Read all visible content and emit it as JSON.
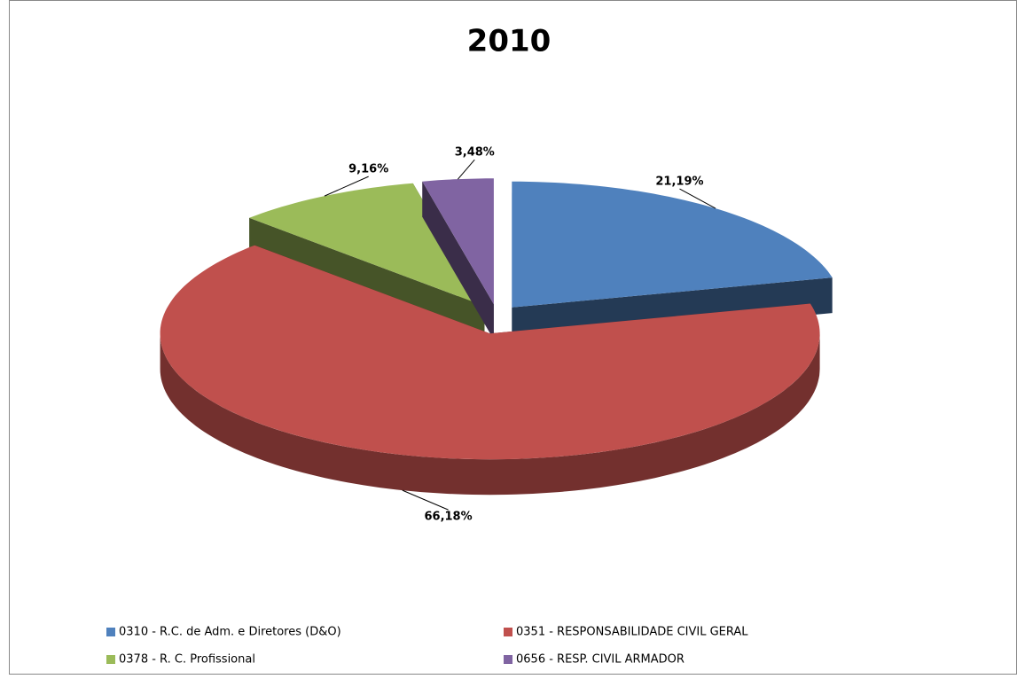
{
  "chart_data": {
    "type": "pie",
    "title": "2010",
    "categories": [
      "0310 - R.C. de Adm. e Diretores (D&O)",
      "0351 - RESPONSABILIDADE CIVIL GERAL",
      "0378 - R. C. Profissional",
      "0656 - RESP. CIVIL ARMADOR"
    ],
    "values": [
      21.19,
      66.18,
      9.16,
      3.48
    ],
    "value_labels": [
      "21,19%",
      "66,18%",
      "9,16%",
      "3,48%"
    ],
    "colors": [
      "#4f81bd",
      "#c0504d",
      "#9bbb59",
      "#8064a2"
    ],
    "legend": "bottom"
  }
}
